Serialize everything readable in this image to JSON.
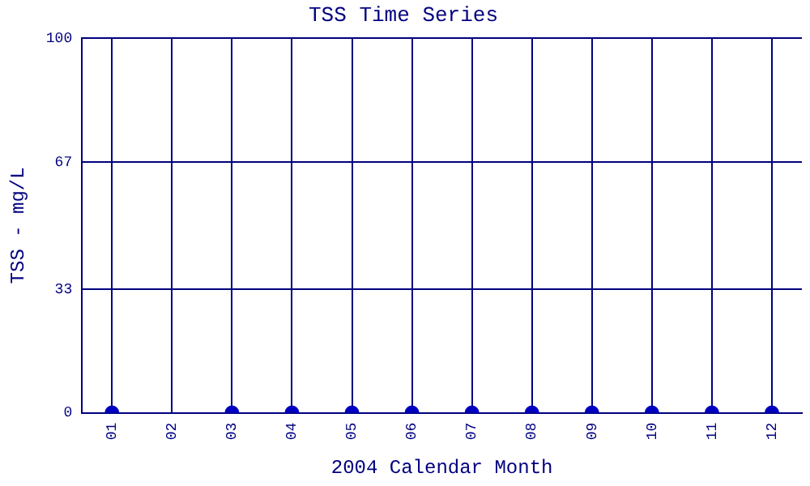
{
  "chart_data": {
    "type": "scatter",
    "title": "TSS Time Series",
    "xlabel": "2004 Calendar Month",
    "ylabel": "TSS - mg/L",
    "categories": [
      "01",
      "02",
      "03",
      "04",
      "05",
      "06",
      "07",
      "08",
      "09",
      "10",
      "11",
      "12"
    ],
    "series": [
      {
        "color": "#0000c0",
        "values": [
          0,
          null,
          0,
          0,
          0,
          0,
          0,
          0,
          0,
          0,
          0,
          0
        ]
      }
    ],
    "ylim": [
      0,
      100
    ],
    "yticks": [
      0,
      33,
      67,
      100
    ],
    "grid": true,
    "legend": false,
    "marker": "circle"
  }
}
